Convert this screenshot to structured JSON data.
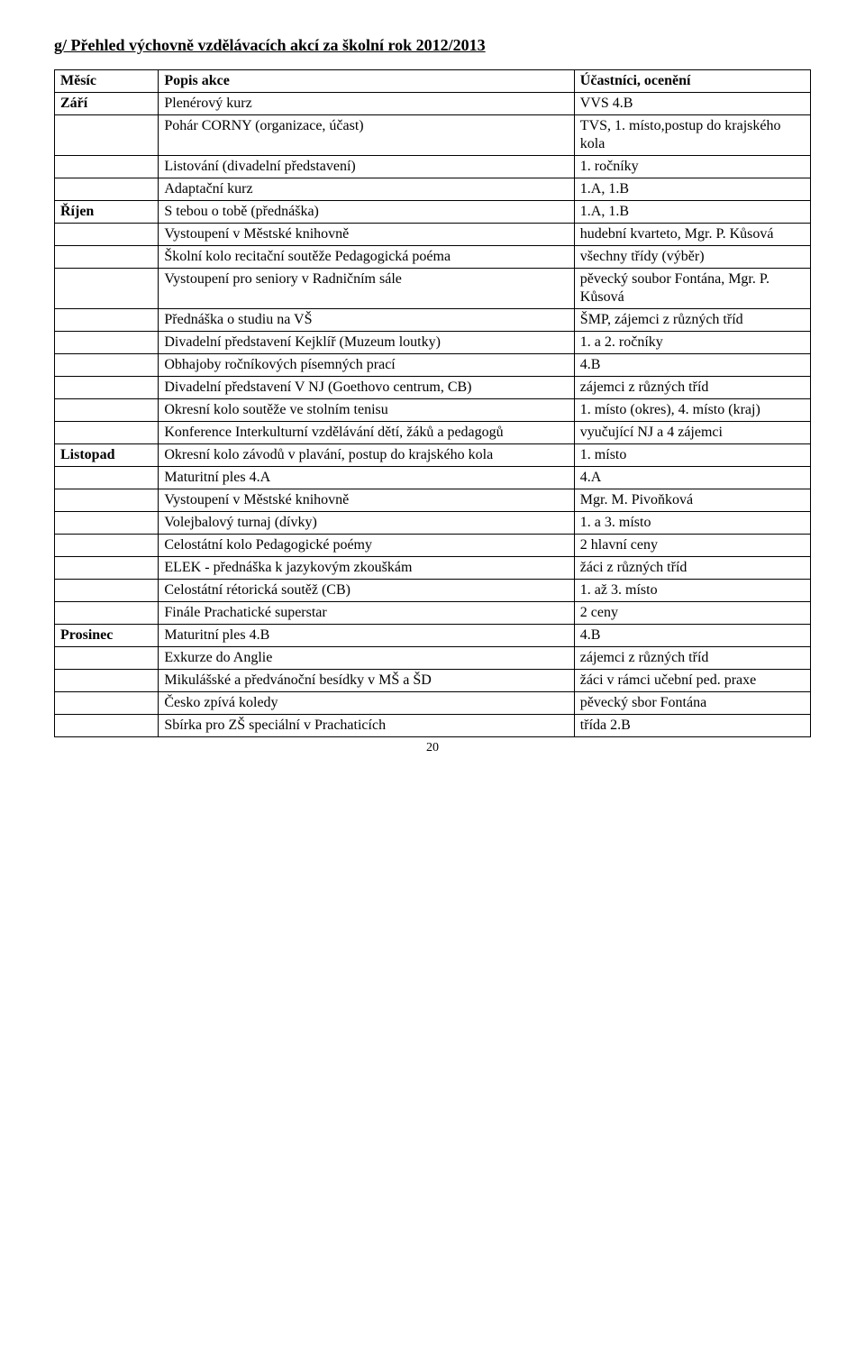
{
  "title": "g/ Přehled výchovně vzdělávacích akcí za školní rok 2012/2013",
  "headers": {
    "col1": "Měsíc",
    "col2": "Popis akce",
    "col3": "Účastníci, ocenění"
  },
  "rows": [
    {
      "month": "Září",
      "desc": "Plenérový kurz",
      "part": "VVS 4.B"
    },
    {
      "month": "",
      "desc": "Pohár CORNY (organizace, účast)",
      "part": "TVS, 1. místo,postup do krajského kola"
    },
    {
      "month": "",
      "desc": "Listování (divadelní představení)",
      "part": "1. ročníky"
    },
    {
      "month": "",
      "desc": "Adaptační kurz",
      "part": "1.A, 1.B"
    },
    {
      "month": "Říjen",
      "desc": "S tebou o tobě (přednáška)",
      "part": "1.A, 1.B"
    },
    {
      "month": "",
      "desc": "Vystoupení v Městské knihovně",
      "part": "hudební kvarteto, Mgr. P. Kůsová"
    },
    {
      "month": "",
      "desc": "Školní kolo recitační soutěže Pedagogická poéma",
      "part": "všechny třídy (výběr)"
    },
    {
      "month": "",
      "desc": "Vystoupení pro seniory v Radničním sále",
      "part": "pěvecký soubor Fontána, Mgr. P. Kůsová"
    },
    {
      "month": "",
      "desc": "Přednáška o studiu na VŠ",
      "part": "ŠMP, zájemci z různých tříd"
    },
    {
      "month": "",
      "desc": "Divadelní představení Kejklíř (Muzeum loutky)",
      "part": "1. a 2. ročníky"
    },
    {
      "month": "",
      "desc": "Obhajoby ročníkových písemných prací",
      "part": "4.B"
    },
    {
      "month": "",
      "desc": "Divadelní představení V NJ (Goethovo centrum, CB)",
      "part": "zájemci z různých tříd"
    },
    {
      "month": "",
      "desc": "Okresní kolo soutěže ve stolním tenisu",
      "part": "1. místo (okres), 4. místo (kraj)"
    },
    {
      "month": "",
      "desc": "Konference Interkulturní vzdělávání dětí, žáků a pedagogů",
      "part": "vyučující NJ a 4 zájemci"
    },
    {
      "month": "Listopad",
      "desc": "Okresní kolo závodů v plavání, postup do krajského kola",
      "part": "1. místo"
    },
    {
      "month": "",
      "desc": "Maturitní ples 4.A",
      "part": "4.A"
    },
    {
      "month": "",
      "desc": "Vystoupení v Městské knihovně",
      "part": "Mgr. M. Pivoňková"
    },
    {
      "month": "",
      "desc": "Volejbalový turnaj (dívky)",
      "part": "1. a 3. místo"
    },
    {
      "month": "",
      "desc": "Celostátní kolo Pedagogické poémy",
      "part": "2 hlavní ceny"
    },
    {
      "month": "",
      "desc": "ELEK - přednáška k jazykovým zkouškám",
      "part": "žáci z různých tříd"
    },
    {
      "month": "",
      "desc": "Celostátní rétorická soutěž (CB)",
      "part": "1. až 3. místo"
    },
    {
      "month": "",
      "desc": "Finále Prachatické superstar",
      "part": "2 ceny"
    },
    {
      "month": "Prosinec",
      "desc": "Maturitní ples 4.B",
      "part": "4.B"
    },
    {
      "month": "",
      "desc": "Exkurze do Anglie",
      "part": "zájemci z různých tříd"
    },
    {
      "month": "",
      "desc": "Mikulášské a předvánoční besídky v MŠ a ŠD",
      "part": "žáci v rámci učební ped. praxe"
    },
    {
      "month": "",
      "desc": "Česko zpívá koledy",
      "part": "pěvecký sbor Fontána"
    },
    {
      "month": "",
      "desc": "Sbírka pro ZŠ speciální v Prachaticích",
      "part": "třída 2.B"
    }
  ],
  "pageNumber": "20"
}
